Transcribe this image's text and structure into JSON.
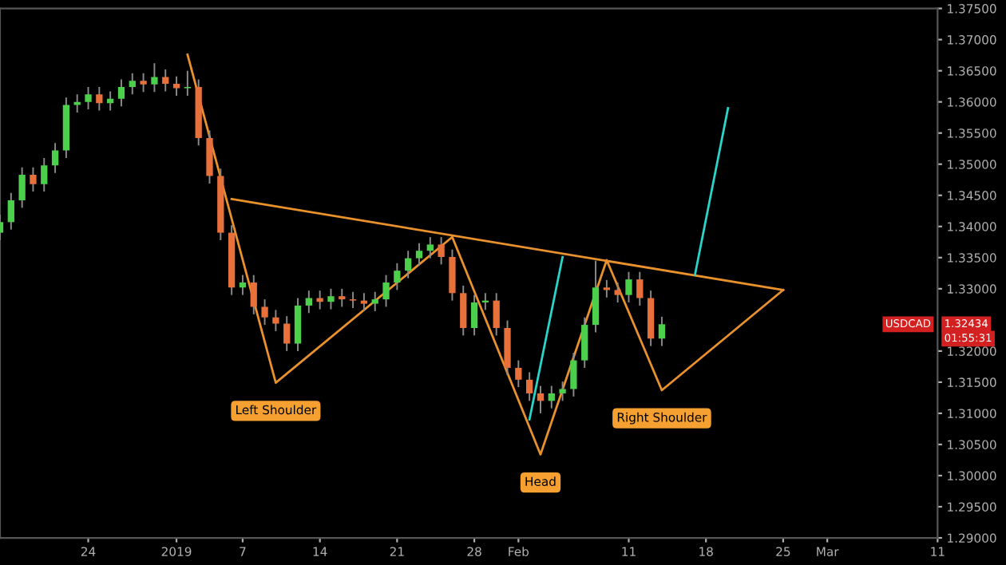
{
  "chart_data": {
    "type": "candlestick",
    "x": [
      "2018-12-16",
      "2018-12-17",
      "2018-12-18",
      "2018-12-19",
      "2018-12-20",
      "2018-12-21",
      "2018-12-22",
      "2018-12-23",
      "2018-12-24",
      "2018-12-25",
      "2018-12-26",
      "2018-12-27",
      "2018-12-28",
      "2018-12-29",
      "2018-12-30",
      "2018-12-31",
      "2019-01-01",
      "2019-01-02",
      "2019-01-03",
      "2019-01-04",
      "2019-01-05",
      "2019-01-06",
      "2019-01-07",
      "2019-01-08",
      "2019-01-09",
      "2019-01-10",
      "2019-01-11",
      "2019-01-12",
      "2019-01-13",
      "2019-01-14",
      "2019-01-15",
      "2019-01-16",
      "2019-01-17",
      "2019-01-18",
      "2019-01-19",
      "2019-01-20",
      "2019-01-21",
      "2019-01-22",
      "2019-01-23",
      "2019-01-24",
      "2019-01-25",
      "2019-01-26",
      "2019-01-27",
      "2019-01-28",
      "2019-01-29",
      "2019-01-30",
      "2019-01-31",
      "2019-02-01",
      "2019-02-02",
      "2019-02-03",
      "2019-02-04",
      "2019-02-05",
      "2019-02-06",
      "2019-02-07",
      "2019-02-08",
      "2019-02-09",
      "2019-02-10",
      "2019-02-11",
      "2019-02-12",
      "2019-02-13",
      "2019-02-14"
    ],
    "ohlc": [
      [
        1.339,
        1.3419,
        1.3378,
        1.3407
      ],
      [
        1.3407,
        1.3454,
        1.3395,
        1.3442
      ],
      [
        1.3442,
        1.3495,
        1.343,
        1.3483
      ],
      [
        1.3483,
        1.3495,
        1.3456,
        1.3468
      ],
      [
        1.3468,
        1.351,
        1.3456,
        1.3498
      ],
      [
        1.3498,
        1.3534,
        1.3486,
        1.3522
      ],
      [
        1.3522,
        1.3607,
        1.351,
        1.3595
      ],
      [
        1.3595,
        1.3612,
        1.3583,
        1.36
      ],
      [
        1.36,
        1.3624,
        1.3588,
        1.3612
      ],
      [
        1.3612,
        1.3624,
        1.3586,
        1.3598
      ],
      [
        1.3598,
        1.3617,
        1.3586,
        1.3605
      ],
      [
        1.3605,
        1.3636,
        1.3593,
        1.3624
      ],
      [
        1.3624,
        1.3646,
        1.3612,
        1.3634
      ],
      [
        1.3634,
        1.3646,
        1.3616,
        1.3628
      ],
      [
        1.3628,
        1.3662,
        1.3616,
        1.364
      ],
      [
        1.364,
        1.3652,
        1.3617,
        1.3629
      ],
      [
        1.3629,
        1.3641,
        1.361,
        1.3622
      ],
      [
        1.3622,
        1.365,
        1.361,
        1.3624
      ],
      [
        1.3624,
        1.3636,
        1.353,
        1.3542
      ],
      [
        1.3542,
        1.3554,
        1.3469,
        1.3481
      ],
      [
        1.3481,
        1.3493,
        1.3378,
        1.339
      ],
      [
        1.339,
        1.3402,
        1.329,
        1.3302
      ],
      [
        1.3302,
        1.3322,
        1.329,
        1.331
      ],
      [
        1.331,
        1.3322,
        1.3259,
        1.3271
      ],
      [
        1.3271,
        1.3283,
        1.3242,
        1.3254
      ],
      [
        1.3254,
        1.3266,
        1.3232,
        1.3244
      ],
      [
        1.3244,
        1.3256,
        1.32,
        1.3212
      ],
      [
        1.3212,
        1.3285,
        1.32,
        1.3273
      ],
      [
        1.3273,
        1.3297,
        1.3261,
        1.3285
      ],
      [
        1.3285,
        1.3297,
        1.3267,
        1.3279
      ],
      [
        1.3279,
        1.33,
        1.3267,
        1.3288
      ],
      [
        1.3288,
        1.33,
        1.3271,
        1.3283
      ],
      [
        1.3283,
        1.3295,
        1.3269,
        1.3281
      ],
      [
        1.3281,
        1.3293,
        1.3264,
        1.3276
      ],
      [
        1.3276,
        1.3295,
        1.3264,
        1.3283
      ],
      [
        1.3283,
        1.3322,
        1.3271,
        1.331
      ],
      [
        1.331,
        1.3341,
        1.3298,
        1.3329
      ],
      [
        1.3329,
        1.3361,
        1.3317,
        1.3349
      ],
      [
        1.3349,
        1.3373,
        1.3337,
        1.3361
      ],
      [
        1.3361,
        1.3383,
        1.3349,
        1.3371
      ],
      [
        1.3371,
        1.3383,
        1.3339,
        1.3351
      ],
      [
        1.3351,
        1.3363,
        1.3281,
        1.3293
      ],
      [
        1.3293,
        1.3305,
        1.3225,
        1.3237
      ],
      [
        1.3237,
        1.329,
        1.3225,
        1.3278
      ],
      [
        1.3278,
        1.3293,
        1.3266,
        1.3281
      ],
      [
        1.3281,
        1.3293,
        1.3225,
        1.3237
      ],
      [
        1.3237,
        1.3249,
        1.3161,
        1.3173
      ],
      [
        1.3173,
        1.3185,
        1.3142,
        1.3154
      ],
      [
        1.3154,
        1.3166,
        1.312,
        1.3132
      ],
      [
        1.3132,
        1.3144,
        1.31,
        1.312
      ],
      [
        1.312,
        1.3144,
        1.3108,
        1.3132
      ],
      [
        1.3132,
        1.3151,
        1.312,
        1.3139
      ],
      [
        1.3139,
        1.3197,
        1.3127,
        1.3185
      ],
      [
        1.3185,
        1.3254,
        1.3173,
        1.3242
      ],
      [
        1.3242,
        1.3345,
        1.323,
        1.3302
      ],
      [
        1.3302,
        1.3314,
        1.3286,
        1.3298
      ],
      [
        1.3298,
        1.331,
        1.3278,
        1.329
      ],
      [
        1.329,
        1.3327,
        1.3278,
        1.3315
      ],
      [
        1.3315,
        1.3327,
        1.3273,
        1.3285
      ],
      [
        1.3285,
        1.3297,
        1.3208,
        1.322
      ],
      [
        1.322,
        1.3255,
        1.3208,
        1.3243
      ]
    ],
    "series": [
      {
        "type": "line",
        "color": "#e8912d",
        "x": [
          "2019-01-06",
          "2019-02-25"
        ],
        "values": [
          1.3444,
          1.3298
        ]
      },
      {
        "type": "line",
        "color": "#e8912d",
        "x": [
          "2019-01-02",
          "2019-01-10",
          "2019-01-26",
          "2019-02-03",
          "2019-02-09",
          "2019-02-14",
          "2019-02-25"
        ],
        "values": [
          1.3676,
          1.3149,
          1.3383,
          1.3034,
          1.3346,
          1.3137,
          1.3298
        ]
      },
      {
        "type": "line",
        "color": "#2ad4c8",
        "x": [
          "2019-02-02",
          "2019-02-05"
        ],
        "values": [
          1.309,
          1.3351
        ]
      },
      {
        "type": "line",
        "color": "#2ad4c8",
        "x": [
          "2019-02-17",
          "2019-02-20"
        ],
        "values": [
          1.3322,
          1.359
        ]
      }
    ],
    "annotations": [
      {
        "text": "Left Shoulder",
        "x": "2019-01-10",
        "y": 1.3149
      },
      {
        "text": "Head",
        "x": "2019-02-03",
        "y": 1.3034
      },
      {
        "text": "Right Shoulder",
        "x": "2019-02-14",
        "y": 1.3137
      },
      "USDCAD",
      "1.32434",
      "01:55:31"
    ],
    "xlim": [
      "2018-12-16",
      "2019-03-11"
    ],
    "xticks": [
      {
        "value": "2018-12-24",
        "label": "24"
      },
      {
        "value": "2019-01-01",
        "label": "2019"
      },
      {
        "value": "2019-01-07",
        "label": "7"
      },
      {
        "value": "2019-01-14",
        "label": "14"
      },
      {
        "value": "2019-01-21",
        "label": "21"
      },
      {
        "value": "2019-01-28",
        "label": "28"
      },
      {
        "value": "2019-02-01",
        "label": "Feb"
      },
      {
        "value": "2019-02-11",
        "label": "11"
      },
      {
        "value": "2019-02-18",
        "label": "18"
      },
      {
        "value": "2019-02-25",
        "label": "25"
      },
      {
        "value": "2019-03-01",
        "label": "Mar"
      },
      {
        "value": "2019-03-11",
        "label": "11"
      }
    ],
    "ylim": [
      1.29,
      1.375
    ],
    "yticks": [
      {
        "value": 1.29,
        "label": "1.29000"
      },
      {
        "value": 1.295,
        "label": "1.29500"
      },
      {
        "value": 1.3,
        "label": "1.30000"
      },
      {
        "value": 1.305,
        "label": "1.30500"
      },
      {
        "value": 1.31,
        "label": "1.31000"
      },
      {
        "value": 1.315,
        "label": "1.31500"
      },
      {
        "value": 1.32,
        "label": "1.32000"
      },
      {
        "value": 1.33,
        "label": "1.33000"
      },
      {
        "value": 1.335,
        "label": "1.33500"
      },
      {
        "value": 1.34,
        "label": "1.34000"
      },
      {
        "value": 1.345,
        "label": "1.34500"
      },
      {
        "value": 1.35,
        "label": "1.35000"
      },
      {
        "value": 1.355,
        "label": "1.35500"
      },
      {
        "value": 1.36,
        "label": "1.36000"
      },
      {
        "value": 1.365,
        "label": "1.36500"
      },
      {
        "value": 1.37,
        "label": "1.37000"
      },
      {
        "value": 1.375,
        "label": "1.37500"
      }
    ],
    "grid": false,
    "legend": false
  }
}
